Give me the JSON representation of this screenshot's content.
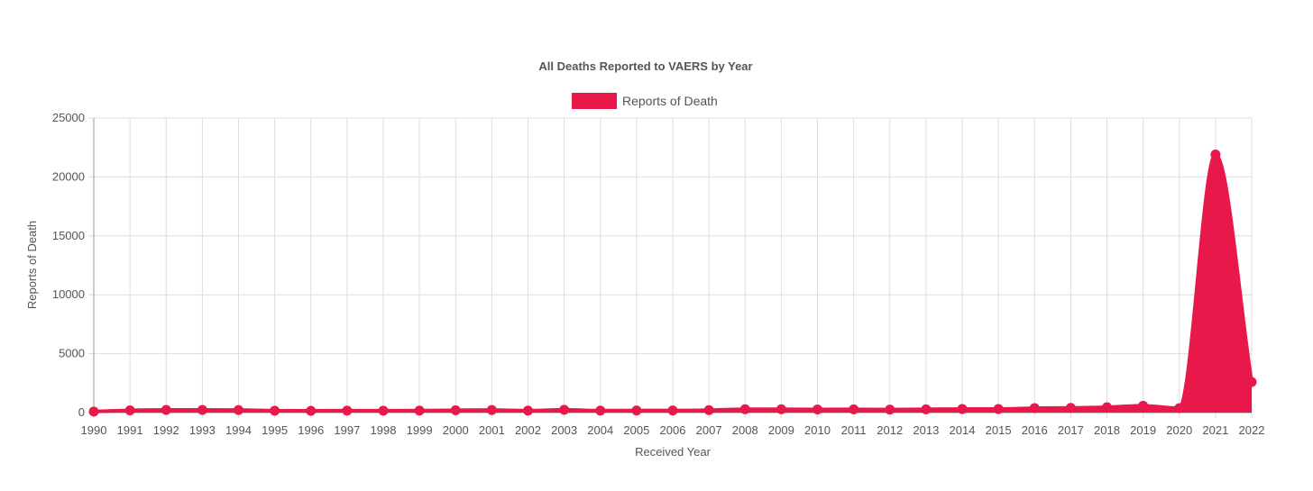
{
  "chart_data": {
    "type": "area",
    "title": "All Deaths Reported to VAERS by Year",
    "xlabel": "Received Year",
    "ylabel": "Reports of Death",
    "ylim": [
      0,
      25000
    ],
    "yticks": [
      "0",
      "5000",
      "10000",
      "15000",
      "20000",
      "25000"
    ],
    "categories": [
      "1990",
      "1991",
      "1992",
      "1993",
      "1994",
      "1995",
      "1996",
      "1997",
      "1998",
      "1999",
      "2000",
      "2001",
      "2002",
      "2003",
      "2004",
      "2005",
      "2006",
      "2007",
      "2008",
      "2009",
      "2010",
      "2011",
      "2012",
      "2013",
      "2014",
      "2015",
      "2016",
      "2017",
      "2018",
      "2019",
      "2020",
      "2021",
      "2022"
    ],
    "series": [
      {
        "name": "Reports of Death",
        "color": "#e8194a",
        "values": [
          90,
          190,
          230,
          230,
          220,
          160,
          150,
          170,
          160,
          170,
          200,
          220,
          170,
          240,
          170,
          180,
          180,
          210,
          290,
          290,
          270,
          280,
          260,
          280,
          310,
          310,
          380,
          400,
          460,
          580,
          380,
          21900,
          2600
        ]
      }
    ],
    "grid": true,
    "legend": "top-center"
  }
}
